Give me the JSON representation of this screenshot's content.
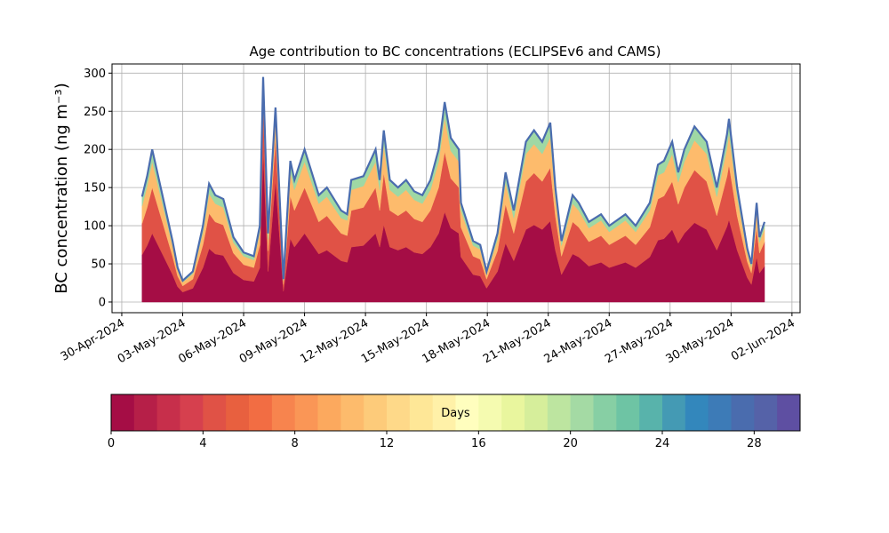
{
  "chart_data": {
    "type": "stacked_area",
    "title": "Age contribution to BC concentrations (ECLIPSEv6 and CAMS)",
    "y_label": "BC concentration (ng m⁻³)",
    "x": [
      1.0,
      1.25,
      1.5,
      2.0,
      2.5,
      2.75,
      3.0,
      3.5,
      4.0,
      4.3,
      4.6,
      5.0,
      5.5,
      6.0,
      6.5,
      6.8,
      6.96,
      7.2,
      7.57,
      7.96,
      8.3,
      8.5,
      9.0,
      9.7,
      10.1,
      10.8,
      11.1,
      11.3,
      11.9,
      12.5,
      12.7,
      12.9,
      13.2,
      13.6,
      14.0,
      14.4,
      14.8,
      15.2,
      15.6,
      15.9,
      16.2,
      16.6,
      16.7,
      17.3,
      17.65,
      17.96,
      18.5,
      18.9,
      19.3,
      19.9,
      20.3,
      20.7,
      21.1,
      21.35,
      21.65,
      22.2,
      22.5,
      23.0,
      23.6,
      24.0,
      24.8,
      25.3,
      26.0,
      26.4,
      26.7,
      27.1,
      27.4,
      27.7,
      28.2,
      28.8,
      29.3,
      29.8,
      29.9,
      30.3,
      30.8,
      31.0,
      31.26,
      31.4,
      31.65
    ],
    "series": [
      {
        "color": "#a50d45",
        "values": [
          62,
          74,
          90,
          63,
          36,
          20,
          13,
          18,
          45,
          70,
          63,
          61,
          38,
          29,
          27,
          45,
          200,
          40,
          160,
          14,
          83,
          72,
          90,
          63,
          68,
          54,
          52,
          72,
          74,
          90,
          72,
          101,
          72,
          68,
          72,
          65,
          63,
          72,
          90,
          118,
          97,
          90,
          59,
          36,
          34,
          18,
          40,
          77,
          54,
          95,
          101,
          95,
          106,
          68,
          36,
          63,
          59,
          47,
          52,
          45,
          52,
          45,
          59,
          81,
          83,
          95,
          77,
          90,
          104,
          95,
          68,
          99,
          108,
          68,
          32,
          23,
          59,
          38,
          47
        ]
      },
      {
        "color": "#e05246",
        "values": [
          41,
          50,
          60,
          42,
          24,
          14,
          8,
          12,
          30,
          46,
          42,
          40,
          26,
          20,
          18,
          30,
          60,
          27,
          55,
          9,
          56,
          48,
          60,
          42,
          45,
          36,
          35,
          48,
          50,
          60,
          48,
          68,
          48,
          45,
          48,
          44,
          42,
          48,
          60,
          79,
          65,
          60,
          39,
          24,
          22,
          12,
          27,
          51,
          36,
          63,
          68,
          63,
          70,
          45,
          24,
          42,
          39,
          32,
          35,
          30,
          35,
          30,
          39,
          54,
          56,
          63,
          51,
          60,
          69,
          63,
          45,
          66,
          72,
          45,
          21,
          15,
          39,
          26,
          32
        ]
      },
      {
        "color": "#fdbb6c",
        "values": [
          23,
          28,
          34,
          24,
          14,
          8,
          5,
          7,
          17,
          26,
          24,
          23,
          14,
          11,
          10,
          17,
          25,
          15,
          28,
          5,
          31,
          27,
          34,
          24,
          25,
          20,
          20,
          27,
          28,
          34,
          27,
          38,
          27,
          25,
          27,
          25,
          24,
          27,
          34,
          45,
          36,
          34,
          22,
          14,
          13,
          7,
          15,
          29,
          20,
          36,
          38,
          36,
          40,
          25,
          14,
          24,
          22,
          18,
          20,
          17,
          20,
          17,
          22,
          31,
          31,
          36,
          29,
          34,
          39,
          36,
          25,
          37,
          41,
          25,
          12,
          8,
          22,
          14,
          18
        ]
      },
      {
        "color": "#9fd8a4",
        "values": [
          12,
          13,
          16,
          11,
          6,
          3,
          2,
          3,
          8,
          13,
          11,
          11,
          7,
          5,
          5,
          8,
          10,
          8,
          12,
          2,
          15,
          13,
          16,
          11,
          12,
          10,
          8,
          13,
          13,
          16,
          13,
          18,
          13,
          12,
          13,
          11,
          11,
          13,
          16,
          20,
          17,
          16,
          10,
          6,
          6,
          3,
          8,
          13,
          10,
          16,
          18,
          16,
          19,
          12,
          6,
          11,
          10,
          8,
          8,
          8,
          8,
          8,
          10,
          14,
          15,
          16,
          13,
          16,
          18,
          16,
          12,
          18,
          19,
          12,
          5,
          4,
          10,
          7,
          8
        ]
      }
    ],
    "outline_color": "#4a6cae",
    "xlim": [
      -0.48,
      33.4
    ],
    "xticks": [
      {
        "value": 0,
        "label": "30-Apr-2024"
      },
      {
        "value": 3,
        "label": "03-May-2024"
      },
      {
        "value": 6,
        "label": "06-May-2024"
      },
      {
        "value": 9,
        "label": "09-May-2024"
      },
      {
        "value": 12,
        "label": "12-May-2024"
      },
      {
        "value": 15,
        "label": "15-May-2024"
      },
      {
        "value": 18,
        "label": "18-May-2024"
      },
      {
        "value": 21,
        "label": "21-May-2024"
      },
      {
        "value": 24,
        "label": "24-May-2024"
      },
      {
        "value": 27,
        "label": "27-May-2024"
      },
      {
        "value": 30,
        "label": "30-May-2024"
      },
      {
        "value": 33,
        "label": "02-Jun-2024"
      }
    ],
    "ylim": [
      -14,
      312
    ],
    "yticks": [
      0,
      50,
      100,
      150,
      200,
      250,
      300
    ],
    "grid": true,
    "colorbar": {
      "label": "Days",
      "lim": [
        0,
        30
      ],
      "ticks": [
        0,
        4,
        8,
        12,
        16,
        20,
        24,
        28
      ],
      "colors": [
        "#a50d45",
        "#b61f48",
        "#c72f4b",
        "#d6404e",
        "#e05246",
        "#e8603f",
        "#f26d43",
        "#f7844e",
        "#fa9656",
        "#fca95e",
        "#fdbb6c",
        "#fdcb7a",
        "#fed989",
        "#fee797",
        "#fff1a8",
        "#fffebe",
        "#f5fbb0",
        "#e9f69e",
        "#d6ee9b",
        "#bde5a0",
        "#a4daa4",
        "#87cfa4",
        "#6ec4a4",
        "#58b3ab",
        "#449ab4",
        "#3387bc",
        "#3d7bb7",
        "#4a6cae",
        "#5562a8",
        "#5e4fa2"
      ]
    }
  }
}
